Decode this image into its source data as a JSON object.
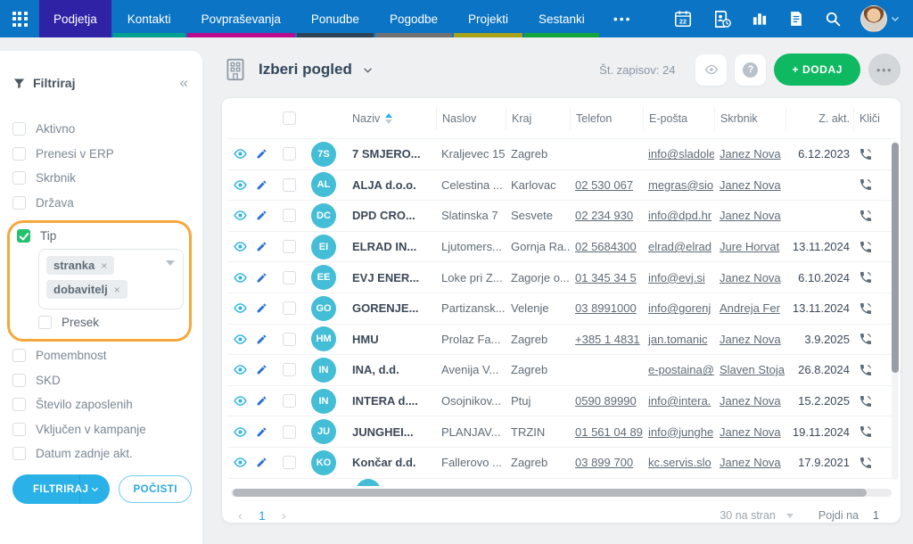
{
  "nav": {
    "tabs": [
      {
        "id": "podjetja",
        "label": "Podjetja",
        "active": true,
        "underline_color": "#2f22a4"
      },
      {
        "id": "kontakti",
        "label": "Kontakti",
        "active": false,
        "underline_color": "#00a18f"
      },
      {
        "id": "povprasevanja",
        "label": "Povpraševanja",
        "active": false,
        "underline_color": "#bb0b8f"
      },
      {
        "id": "ponudbe",
        "label": "Ponudbe",
        "active": false,
        "underline_color": "#2c4356"
      },
      {
        "id": "pogodbe",
        "label": "Pogodbe",
        "active": false,
        "underline_color": "#6f7173"
      },
      {
        "id": "projekti",
        "label": "Projekti",
        "active": false,
        "underline_color": "#a9a31c"
      },
      {
        "id": "sestanki",
        "label": "Sestanki",
        "active": false,
        "underline_color": "#13a53c"
      }
    ],
    "more_label": "•••",
    "calendar_day": "22",
    "icons": [
      "calendar-icon",
      "contacts-recent-icon",
      "bar-chart-icon",
      "documents-icon",
      "search-icon",
      "user-avatar",
      "chevron-down-icon"
    ]
  },
  "sidebar": {
    "title": "Filtriraj",
    "collapse_glyph": "«",
    "filters_top": [
      "Aktivno",
      "Prenesi v ERP",
      "Skrbnik",
      "Država"
    ],
    "tip": {
      "label": "Tip",
      "checked": true,
      "tags": [
        "stranka",
        "dobavitelj"
      ],
      "tag_remove_glyph": "×",
      "sub_checkbox": "Presek"
    },
    "filters_bottom": [
      "Pomembnost",
      "SKD",
      "Število zaposlenih",
      "Vključen v kampanje",
      "Datum zadnje akt."
    ],
    "filter_button": "FILTRIRAJ",
    "clear_button": "POČISTI"
  },
  "toolbar": {
    "view_selector": "Izberi pogled",
    "record_count_label": "Št. zapisov: 24",
    "add_button": "+ DODAJ",
    "more_glyph": "•••"
  },
  "table": {
    "columns": [
      "Naziv",
      "Naslov",
      "Kraj",
      "Telefon",
      "E-pošta",
      "Skrbnik",
      "Z. akt.",
      "Kliči"
    ],
    "sort": {
      "column": "Naziv",
      "direction": "asc"
    },
    "rows": [
      {
        "initials": "7S",
        "naziv": "7 SMJERO...",
        "naslov": "Kraljevec 15",
        "kraj": "Zagreb",
        "telefon": "",
        "eposta": "info@sladole",
        "skrbnik": "Janez Nova",
        "zakt": "6.12.2023"
      },
      {
        "initials": "AL",
        "naziv": "ALJA d.o.o.",
        "naslov": "Celestina ...",
        "kraj": "Karlovac",
        "telefon": "02 530 067",
        "eposta": "megras@sio",
        "skrbnik": "Janez Nova",
        "zakt": ""
      },
      {
        "initials": "DC",
        "naziv": "DPD CRO...",
        "naslov": "Slatinska 7",
        "kraj": "Sesvete",
        "telefon": "02 234 930",
        "eposta": "info@dpd.hr",
        "skrbnik": "Janez Nova",
        "zakt": ""
      },
      {
        "initials": "EI",
        "naziv": "ELRAD IN...",
        "naslov": "Ljutomers...",
        "kraj": "Gornja Ra...",
        "telefon": "02 5684300",
        "eposta": "elrad@elrad",
        "skrbnik": "Jure Horvat",
        "zakt": "13.11.2024"
      },
      {
        "initials": "EE",
        "naziv": "EVJ ENER...",
        "naslov": "Loke pri Z...",
        "kraj": "Zagorje o...",
        "telefon": "01 345 34 5",
        "eposta": "info@evj.si",
        "skrbnik": "Janez Nova",
        "zakt": "6.10.2024"
      },
      {
        "initials": "GO",
        "naziv": "GORENJE...",
        "naslov": "Partizansk...",
        "kraj": "Velenje",
        "telefon": "03 8991000",
        "eposta": "info@gorenj",
        "skrbnik": "Andreja Fer",
        "zakt": "13.11.2024"
      },
      {
        "initials": "HM",
        "naziv": "HMU",
        "naslov": "Prolaz Fa...",
        "kraj": "Zagreb",
        "telefon": "+385 1 4831",
        "eposta": "jan.tomanic",
        "skrbnik": "Janez Nova",
        "zakt": "3.9.2025"
      },
      {
        "initials": "IN",
        "naziv": "INA, d.d.",
        "naslov": "Avenija V...",
        "kraj": "Zagreb",
        "telefon": "",
        "eposta": "e-postaina@",
        "skrbnik": "Slaven Stoja",
        "zakt": "26.8.2024"
      },
      {
        "initials": "IN",
        "naziv": "INTERA d....",
        "naslov": "Osojnikov...",
        "kraj": "Ptuj",
        "telefon": "0590 89990",
        "eposta": "info@intera.",
        "skrbnik": "Janez Nova",
        "zakt": "15.2.2025"
      },
      {
        "initials": "JU",
        "naziv": "JUNGHEI...",
        "naslov": "PLANJAV...",
        "kraj": "TRZIN",
        "telefon": "01 561 04 89",
        "eposta": "info@junghe",
        "skrbnik": "Janez Nova",
        "zakt": "19.11.2024"
      },
      {
        "initials": "KO",
        "naziv": "Končar d.d.",
        "naslov": "Fallerovo ...",
        "kraj": "Zagreb",
        "telefon": "03 899 700",
        "eposta": "kc.servis.slo",
        "skrbnik": "Janez Nova",
        "zakt": "17.9.2021"
      }
    ]
  },
  "pagination": {
    "prev_glyph": "‹",
    "page": "1",
    "next_glyph": "›",
    "page_size": "30 na stran",
    "goto_label": "Pojdi na",
    "goto_value": "1"
  },
  "colors": {
    "nav_blue": "#0b74c4",
    "active_tab": "#2f22a4",
    "accent_cyan": "#29b1e8",
    "add_green": "#0fb961",
    "check_green": "#25c16f",
    "highlight_orange": "#f5a73b",
    "avatar_teal": "#44bdd6"
  }
}
